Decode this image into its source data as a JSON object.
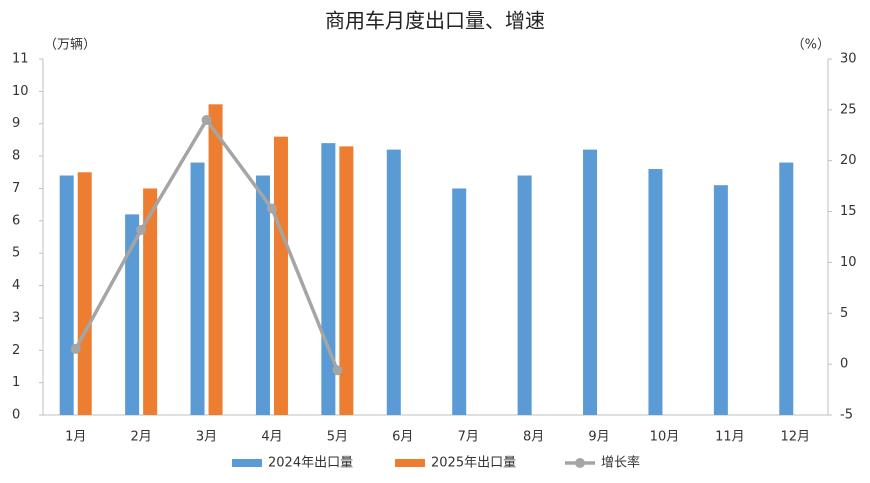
{
  "chart_data": {
    "type": "bar",
    "title": "商用车月度出口量、增速",
    "y_label": "（万辆）",
    "y2_label": "（%）",
    "categories": [
      "1月",
      "2月",
      "3月",
      "4月",
      "5月",
      "6月",
      "7月",
      "8月",
      "9月",
      "10月",
      "11月",
      "12月"
    ],
    "series": [
      {
        "name": "2024年出口量",
        "type": "bar",
        "color": "#5b9bd5",
        "values": [
          7.4,
          6.2,
          7.8,
          7.4,
          8.4,
          8.2,
          7.0,
          7.4,
          8.2,
          7.6,
          7.1,
          7.8
        ]
      },
      {
        "name": "2025年出口量",
        "type": "bar",
        "color": "#ed7d31",
        "values": [
          7.5,
          7.0,
          9.6,
          8.6,
          8.3,
          null,
          null,
          null,
          null,
          null,
          null,
          null
        ]
      },
      {
        "name": "增长率",
        "type": "line",
        "axis": "y2",
        "color": "#a5a5a5",
        "values": [
          1.5,
          13.2,
          24.0,
          15.3,
          -0.6,
          null,
          null,
          null,
          null,
          null,
          null,
          null
        ]
      }
    ],
    "ylim": [
      0,
      11
    ],
    "yticks": [
      0,
      1,
      2,
      3,
      4,
      5,
      6,
      7,
      8,
      9,
      10,
      11
    ],
    "y2lim": [
      -5,
      30
    ],
    "y2ticks": [
      -5,
      0,
      5,
      10,
      15,
      20,
      25,
      30
    ],
    "grid": false,
    "legend": "bottom"
  }
}
